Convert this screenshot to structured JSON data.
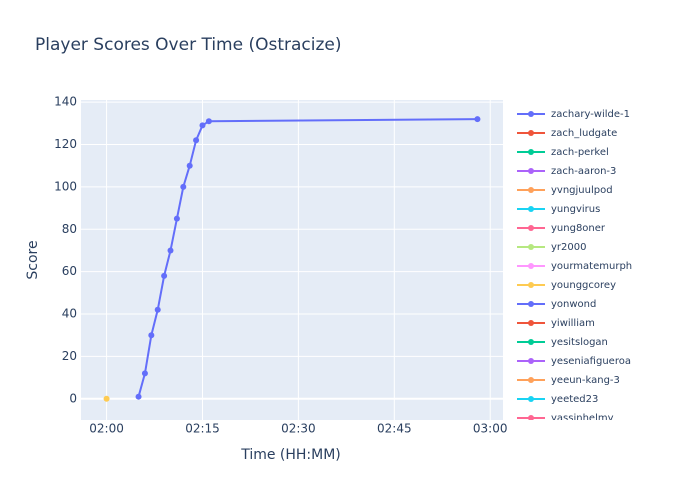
{
  "chart_data": {
    "type": "line",
    "title": "Player Scores Over Time (Ostracize)",
    "x_label": "Time (HH:MM)",
    "y_label": "Score",
    "xlim": [
      "01:56",
      "03:02"
    ],
    "xticks": [
      "02:00",
      "02:15",
      "02:30",
      "02:45",
      "03:00"
    ],
    "ylim": [
      -10,
      141
    ],
    "yticks": [
      0,
      20,
      40,
      60,
      80,
      100,
      120,
      140
    ],
    "grid": true,
    "legend": "right",
    "series": [
      {
        "name": "zachary-wilde-1",
        "color": "#636efa",
        "x": [
          "02:05",
          "02:06",
          "02:07",
          "02:08",
          "02:09",
          "02:10",
          "02:11",
          "02:12",
          "02:13",
          "02:14",
          "02:15",
          "02:16",
          "02:58"
        ],
        "values": [
          1,
          12,
          30,
          42,
          58,
          70,
          85,
          100,
          110,
          122,
          129,
          131,
          132
        ]
      },
      {
        "name": "zach_ludgate",
        "color": "#EF553B",
        "x": [],
        "values": []
      },
      {
        "name": "zach-perkel",
        "color": "#00cc96",
        "x": [],
        "values": []
      },
      {
        "name": "zach-aaron-3",
        "color": "#ab63fa",
        "x": [],
        "values": []
      },
      {
        "name": "yvngjuulpod",
        "color": "#FFA15A",
        "x": [],
        "values": []
      },
      {
        "name": "yungvirus",
        "color": "#19d3f3",
        "x": [],
        "values": []
      },
      {
        "name": "yung8oner",
        "color": "#FF6692",
        "x": [],
        "values": []
      },
      {
        "name": "yr2000",
        "color": "#B6E880",
        "x": [],
        "values": []
      },
      {
        "name": "yourmatemurph",
        "color": "#FF97FF",
        "x": [],
        "values": []
      },
      {
        "name": "younggcorey",
        "color": "#FECB52",
        "x": [
          "02:00"
        ],
        "values": [
          0
        ]
      },
      {
        "name": "yonwond",
        "color": "#636efa",
        "x": [],
        "values": []
      },
      {
        "name": "yiwilliam",
        "color": "#EF553B",
        "x": [],
        "values": []
      },
      {
        "name": "yesitslogan",
        "color": "#00cc96",
        "x": [],
        "values": []
      },
      {
        "name": "yeseniafigueroa",
        "color": "#ab63fa",
        "x": [],
        "values": []
      },
      {
        "name": "yeeun-kang-3",
        "color": "#FFA15A",
        "x": [],
        "values": []
      },
      {
        "name": "yeeted23",
        "color": "#19d3f3",
        "x": [],
        "values": []
      },
      {
        "name": "yassinhelmy",
        "color": "#FF6692",
        "x": [],
        "values": []
      }
    ]
  }
}
